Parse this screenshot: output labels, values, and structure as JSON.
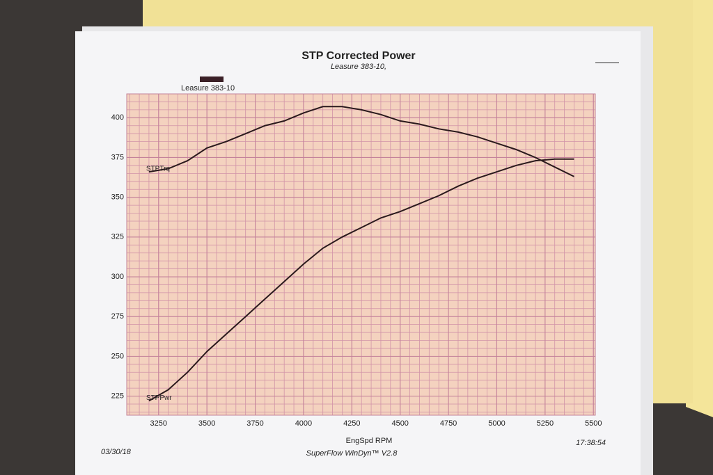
{
  "chart_data": {
    "type": "line",
    "title": "STP Corrected Power",
    "subtitle": "Leasure 383-10,",
    "legend": "Leasure 383-10",
    "x_label": "EngSpd  RPM",
    "date": "03/30/18",
    "time": "17:38:54",
    "footer": "SuperFlow WinDyn™ V2.8",
    "x": [
      3200,
      3300,
      3400,
      3500,
      3600,
      3700,
      3800,
      3900,
      4000,
      4100,
      4200,
      4300,
      4400,
      4500,
      4600,
      4700,
      4800,
      4900,
      5000,
      5100,
      5200,
      5300,
      5400
    ],
    "series": [
      {
        "name": "STPTrq",
        "color": "#2b1a1d",
        "values": [
          366,
          368,
          373,
          381,
          385,
          390,
          395,
          398,
          403,
          407,
          407,
          405,
          402,
          398,
          396,
          393,
          391,
          388,
          384,
          380,
          375,
          369,
          363
        ]
      },
      {
        "name": "STPPwr",
        "color": "#2b1a1d",
        "values": [
          222,
          229,
          240,
          253,
          264,
          275,
          286,
          297,
          308,
          318,
          325,
          331,
          337,
          341,
          346,
          351,
          357,
          362,
          366,
          370,
          373,
          374,
          374
        ]
      }
    ],
    "xlim": [
      3085,
      5510
    ],
    "ylim": [
      213,
      415
    ],
    "xticks": [
      3250,
      3500,
      3750,
      4000,
      4250,
      4500,
      4750,
      5000,
      5250,
      5500
    ],
    "yticks": [
      225,
      250,
      275,
      300,
      325,
      350,
      375,
      400
    ],
    "grid": true
  }
}
